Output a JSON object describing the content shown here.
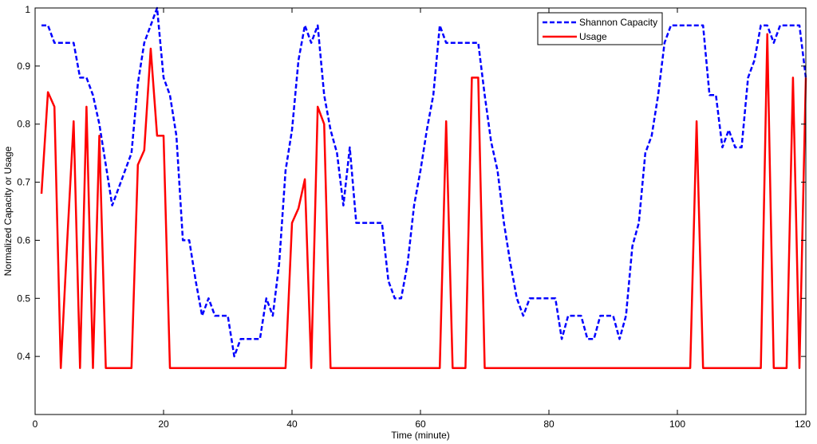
{
  "chart_data": {
    "type": "line",
    "title": "",
    "xlabel": "Time (minute)",
    "ylabel": "Normalized Capacity or Usage",
    "xlim": [
      0,
      120
    ],
    "ylim": [
      0.3,
      1.0
    ],
    "xticks": [
      0,
      20,
      40,
      60,
      80,
      100,
      120
    ],
    "yticks": [
      0.4,
      0.5,
      0.6,
      0.7,
      0.8,
      0.9,
      1
    ],
    "xtick_labels": [
      "0",
      "20",
      "40",
      "60",
      "80",
      "100",
      "120"
    ],
    "ytick_labels": [
      "0.4",
      "0.5",
      "0.6",
      "0.7",
      "0.8",
      "0.9",
      "1"
    ],
    "grid": false,
    "legend_position": "top-right",
    "series": [
      {
        "name": "Shannon Capacity",
        "color": "#0000ff",
        "style": "dashed",
        "points": [
          [
            1,
            0.97
          ],
          [
            2,
            0.97
          ],
          [
            3,
            0.94
          ],
          [
            4,
            0.94
          ],
          [
            5,
            0.94
          ],
          [
            6,
            0.94
          ],
          [
            7,
            0.88
          ],
          [
            8,
            0.88
          ],
          [
            9,
            0.85
          ],
          [
            10,
            0.8
          ],
          [
            11,
            0.73
          ],
          [
            12,
            0.66
          ],
          [
            13,
            0.69
          ],
          [
            14,
            0.72
          ],
          [
            15,
            0.75
          ],
          [
            16,
            0.87
          ],
          [
            17,
            0.94
          ],
          [
            18,
            0.97
          ],
          [
            19,
            1.0
          ],
          [
            20,
            0.88
          ],
          [
            21,
            0.85
          ],
          [
            22,
            0.78
          ],
          [
            23,
            0.6
          ],
          [
            24,
            0.6
          ],
          [
            25,
            0.53
          ],
          [
            26,
            0.47
          ],
          [
            27,
            0.5
          ],
          [
            28,
            0.47
          ],
          [
            29,
            0.47
          ],
          [
            30,
            0.47
          ],
          [
            31,
            0.4
          ],
          [
            32,
            0.43
          ],
          [
            33,
            0.43
          ],
          [
            34,
            0.43
          ],
          [
            35,
            0.43
          ],
          [
            36,
            0.5
          ],
          [
            37,
            0.47
          ],
          [
            38,
            0.56
          ],
          [
            39,
            0.72
          ],
          [
            40,
            0.79
          ],
          [
            41,
            0.91
          ],
          [
            42,
            0.97
          ],
          [
            43,
            0.94
          ],
          [
            44,
            0.97
          ],
          [
            45,
            0.85
          ],
          [
            46,
            0.79
          ],
          [
            47,
            0.75
          ],
          [
            48,
            0.66
          ],
          [
            49,
            0.76
          ],
          [
            50,
            0.63
          ],
          [
            51,
            0.63
          ],
          [
            52,
            0.63
          ],
          [
            53,
            0.63
          ],
          [
            54,
            0.63
          ],
          [
            55,
            0.53
          ],
          [
            56,
            0.5
          ],
          [
            57,
            0.5
          ],
          [
            58,
            0.56
          ],
          [
            59,
            0.66
          ],
          [
            60,
            0.72
          ],
          [
            61,
            0.79
          ],
          [
            62,
            0.85
          ],
          [
            63,
            0.97
          ],
          [
            64,
            0.94
          ],
          [
            65,
            0.94
          ],
          [
            66,
            0.94
          ],
          [
            67,
            0.94
          ],
          [
            68,
            0.94
          ],
          [
            69,
            0.94
          ],
          [
            70,
            0.85
          ],
          [
            71,
            0.77
          ],
          [
            72,
            0.72
          ],
          [
            73,
            0.63
          ],
          [
            74,
            0.56
          ],
          [
            75,
            0.5
          ],
          [
            76,
            0.47
          ],
          [
            77,
            0.5
          ],
          [
            78,
            0.5
          ],
          [
            79,
            0.5
          ],
          [
            80,
            0.5
          ],
          [
            81,
            0.5
          ],
          [
            82,
            0.43
          ],
          [
            83,
            0.47
          ],
          [
            84,
            0.47
          ],
          [
            85,
            0.47
          ],
          [
            86,
            0.43
          ],
          [
            87,
            0.43
          ],
          [
            88,
            0.47
          ],
          [
            89,
            0.47
          ],
          [
            90,
            0.47
          ],
          [
            91,
            0.43
          ],
          [
            92,
            0.47
          ],
          [
            93,
            0.59
          ],
          [
            94,
            0.63
          ],
          [
            95,
            0.75
          ],
          [
            96,
            0.78
          ],
          [
            97,
            0.85
          ],
          [
            98,
            0.94
          ],
          [
            99,
            0.97
          ],
          [
            100,
            0.97
          ],
          [
            101,
            0.97
          ],
          [
            102,
            0.97
          ],
          [
            103,
            0.97
          ],
          [
            104,
            0.97
          ],
          [
            105,
            0.85
          ],
          [
            106,
            0.85
          ],
          [
            107,
            0.76
          ],
          [
            108,
            0.79
          ],
          [
            109,
            0.76
          ],
          [
            110,
            0.76
          ],
          [
            111,
            0.88
          ],
          [
            112,
            0.91
          ],
          [
            113,
            0.97
          ],
          [
            114,
            0.97
          ],
          [
            115,
            0.94
          ],
          [
            116,
            0.97
          ],
          [
            117,
            0.97
          ],
          [
            118,
            0.97
          ],
          [
            119,
            0.97
          ],
          [
            120,
            0.88
          ]
        ]
      },
      {
        "name": "Usage",
        "color": "#ff0000",
        "style": "solid",
        "points": [
          [
            1,
            0.68
          ],
          [
            2,
            0.855
          ],
          [
            3,
            0.83
          ],
          [
            4,
            0.38
          ],
          [
            5,
            0.6
          ],
          [
            6,
            0.805
          ],
          [
            7,
            0.38
          ],
          [
            8,
            0.83
          ],
          [
            9,
            0.38
          ],
          [
            10,
            0.78
          ],
          [
            11,
            0.38
          ],
          [
            12,
            0.38
          ],
          [
            13,
            0.38
          ],
          [
            14,
            0.38
          ],
          [
            15,
            0.38
          ],
          [
            16,
            0.73
          ],
          [
            17,
            0.755
          ],
          [
            18,
            0.93
          ],
          [
            19,
            0.78
          ],
          [
            20,
            0.78
          ],
          [
            21,
            0.38
          ],
          [
            22,
            0.38
          ],
          [
            25,
            0.38
          ],
          [
            30,
            0.38
          ],
          [
            35,
            0.38
          ],
          [
            39,
            0.38
          ],
          [
            40,
            0.63
          ],
          [
            41,
            0.655
          ],
          [
            42,
            0.705
          ],
          [
            43,
            0.38
          ],
          [
            44,
            0.83
          ],
          [
            45,
            0.8
          ],
          [
            46,
            0.38
          ],
          [
            47,
            0.38
          ],
          [
            50,
            0.38
          ],
          [
            55,
            0.38
          ],
          [
            60,
            0.38
          ],
          [
            63,
            0.38
          ],
          [
            64,
            0.805
          ],
          [
            65,
            0.38
          ],
          [
            66,
            0.38
          ],
          [
            67,
            0.38
          ],
          [
            68,
            0.88
          ],
          [
            69,
            0.88
          ],
          [
            70,
            0.38
          ],
          [
            75,
            0.38
          ],
          [
            80,
            0.38
          ],
          [
            85,
            0.38
          ],
          [
            90,
            0.38
          ],
          [
            95,
            0.38
          ],
          [
            100,
            0.38
          ],
          [
            102,
            0.38
          ],
          [
            103,
            0.805
          ],
          [
            104,
            0.38
          ],
          [
            105,
            0.38
          ],
          [
            110,
            0.38
          ],
          [
            113,
            0.38
          ],
          [
            114,
            0.955
          ],
          [
            115,
            0.38
          ],
          [
            116,
            0.38
          ],
          [
            117,
            0.38
          ],
          [
            118,
            0.88
          ],
          [
            119,
            0.38
          ],
          [
            120,
            0.88
          ]
        ]
      }
    ]
  }
}
